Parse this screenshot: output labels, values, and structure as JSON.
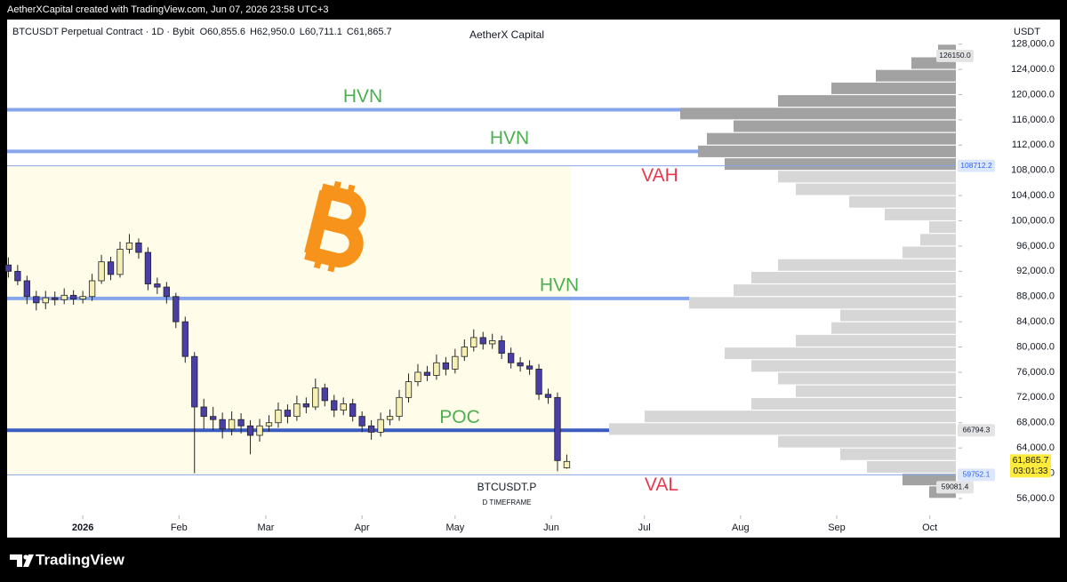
{
  "top_bar": "AetherXCapital created with TradingView.com, Jun 07, 2026 23:58 UTC+3",
  "footer": "TradingView",
  "chart_data": {
    "type": "candlestick",
    "symbol_info": "BTCUSDT Perpetual Contract · 1D · Bybit",
    "ohlc_labels": [
      "O60,855.6",
      "H62,950.0",
      "L60,711.1",
      "C61,865.7"
    ],
    "title": "AetherX Capital",
    "currency": "USDT",
    "watermark": "BTCUSDT.P",
    "watermark_sub": "D TIMEFRAME",
    "up_color": "#f6f0b4",
    "down_color": "#4a3ea8",
    "xlim": [
      -24.4,
      281.4
    ],
    "xticks": [
      {
        "value": 0,
        "label": "2026"
      },
      {
        "value": 31,
        "label": "Feb"
      },
      {
        "value": 59,
        "label": "Mar"
      },
      {
        "value": 90,
        "label": "Apr"
      },
      {
        "value": 120,
        "label": "May"
      },
      {
        "value": 151,
        "label": "Jun"
      },
      {
        "value": 181,
        "label": "Jul"
      },
      {
        "value": 212,
        "label": "Aug"
      },
      {
        "value": 243,
        "label": "Sep"
      },
      {
        "value": 273,
        "label": "Oct"
      }
    ],
    "ylim": [
      53600,
      131900
    ],
    "yticks": [
      {
        "value": 56000,
        "label": "56,000.0"
      },
      {
        "value": 60000,
        "label": "60,000.0"
      },
      {
        "value": 64000,
        "label": "64,000.0"
      },
      {
        "value": 68000,
        "label": "68,000.0"
      },
      {
        "value": 72000,
        "label": "72,000.0"
      },
      {
        "value": 76000,
        "label": "76,000.0"
      },
      {
        "value": 80000,
        "label": "80,000.0"
      },
      {
        "value": 84000,
        "label": "84,000.0"
      },
      {
        "value": 88000,
        "label": "88,000.0"
      },
      {
        "value": 92000,
        "label": "92,000.0"
      },
      {
        "value": 96000,
        "label": "96,000.0"
      },
      {
        "value": 100000,
        "label": "100,000.0"
      },
      {
        "value": 104000,
        "label": "104,000.0"
      },
      {
        "value": 108000,
        "label": "108,000.0"
      },
      {
        "value": 112000,
        "label": "112,000.0"
      },
      {
        "value": 116000,
        "label": "116,000.0"
      },
      {
        "value": 120000,
        "label": "120,000.0"
      },
      {
        "value": 124000,
        "label": "124,000.0"
      },
      {
        "value": 128000,
        "label": "128,000.0"
      }
    ],
    "x": [
      -24,
      -21,
      -18,
      -15,
      -12,
      -9,
      -6,
      -3,
      0,
      3,
      6,
      9,
      12,
      15,
      18,
      21,
      24,
      27,
      30,
      33,
      36,
      39,
      42,
      45,
      48,
      51,
      54,
      57,
      60,
      63,
      66,
      69,
      72,
      75,
      78,
      81,
      84,
      87,
      90,
      93,
      96,
      99,
      102,
      105,
      108,
      111,
      114,
      117,
      120,
      123,
      126,
      129,
      132,
      135,
      138,
      141,
      144,
      147,
      150,
      153,
      156
    ],
    "ohlc": [
      [
        93000,
        94200,
        91000,
        92000
      ],
      [
        92000,
        93000,
        89800,
        90500
      ],
      [
        90500,
        91300,
        86800,
        88000
      ],
      [
        88000,
        88900,
        85800,
        87000
      ],
      [
        87000,
        88900,
        86000,
        87800
      ],
      [
        87800,
        88800,
        86600,
        87500
      ],
      [
        87500,
        89300,
        86800,
        88200
      ],
      [
        88200,
        89000,
        86700,
        87600
      ],
      [
        87600,
        88900,
        86900,
        88000
      ],
      [
        88000,
        91600,
        87300,
        90500
      ],
      [
        90500,
        94600,
        90000,
        93500
      ],
      [
        93500,
        94300,
        90600,
        91500
      ],
      [
        91500,
        96700,
        91000,
        95500
      ],
      [
        95500,
        97900,
        94800,
        96500
      ],
      [
        96500,
        97200,
        94000,
        95000
      ],
      [
        95000,
        95800,
        89000,
        90000
      ],
      [
        90000,
        91000,
        88400,
        89500
      ],
      [
        89500,
        90300,
        86900,
        88000
      ],
      [
        88000,
        88600,
        83000,
        84000
      ],
      [
        84000,
        84800,
        77500,
        78500
      ],
      [
        78500,
        79200,
        60000,
        70500
      ],
      [
        70500,
        71800,
        67000,
        69000
      ],
      [
        69000,
        70500,
        66800,
        68500
      ],
      [
        68500,
        69600,
        65500,
        67000
      ],
      [
        67000,
        69800,
        66000,
        68500
      ],
      [
        68500,
        69500,
        66300,
        67500
      ],
      [
        67500,
        68400,
        63000,
        66000
      ],
      [
        66000,
        68600,
        65000,
        67500
      ],
      [
        67500,
        69200,
        66600,
        68000
      ],
      [
        68000,
        71200,
        67200,
        70000
      ],
      [
        70000,
        70900,
        67900,
        69000
      ],
      [
        69000,
        72300,
        68300,
        71000
      ],
      [
        71000,
        72000,
        69500,
        70500
      ],
      [
        70500,
        75000,
        70000,
        73500
      ],
      [
        73500,
        74200,
        70600,
        71500
      ],
      [
        71500,
        72400,
        68900,
        70000
      ],
      [
        70000,
        72000,
        69200,
        71000
      ],
      [
        71000,
        71800,
        68200,
        69000
      ],
      [
        69000,
        69800,
        66500,
        67500
      ],
      [
        67500,
        68400,
        65300,
        66500
      ],
      [
        66500,
        69600,
        65800,
        68500
      ],
      [
        68500,
        70100,
        67600,
        69000
      ],
      [
        69000,
        73200,
        68300,
        72000
      ],
      [
        72000,
        75800,
        71200,
        74500
      ],
      [
        74500,
        77300,
        73800,
        76000
      ],
      [
        76000,
        77000,
        74600,
        75500
      ],
      [
        75500,
        78800,
        74800,
        77500
      ],
      [
        77500,
        78400,
        75500,
        76500
      ],
      [
        76500,
        79700,
        75800,
        78500
      ],
      [
        78500,
        81200,
        77800,
        80000
      ],
      [
        80000,
        82800,
        79300,
        81500
      ],
      [
        81500,
        82400,
        79600,
        80500
      ],
      [
        80500,
        82100,
        79700,
        81000
      ],
      [
        81000,
        81800,
        78100,
        79000
      ],
      [
        79000,
        79900,
        76600,
        77500
      ],
      [
        77500,
        78400,
        76100,
        77000
      ],
      [
        77000,
        77900,
        75600,
        76500
      ],
      [
        76500,
        77300,
        71600,
        72500
      ],
      [
        72500,
        73400,
        71000,
        72000
      ],
      [
        72000,
        72800,
        60300,
        62000
      ],
      [
        60855.6,
        62950.0,
        60711.1,
        61865.7
      ]
    ],
    "volume_profile": {
      "bins": [
        56000,
        58000,
        60000,
        62000,
        64000,
        66000,
        68000,
        70000,
        72000,
        74000,
        76000,
        78000,
        80000,
        82000,
        84000,
        86000,
        88000,
        90000,
        92000,
        94000,
        96000,
        98000,
        100000,
        102000,
        104000,
        106000,
        108000,
        110000,
        112000,
        114000,
        116000,
        118000,
        120000,
        122000,
        124000,
        126000,
        128000
      ],
      "values": [
        30,
        60,
        100,
        130,
        200,
        390,
        350,
        230,
        180,
        200,
        230,
        260,
        180,
        140,
        130,
        300,
        250,
        230,
        200,
        60,
        40,
        30,
        80,
        120,
        180,
        200,
        260,
        290,
        280,
        250,
        310,
        200,
        140,
        90,
        50,
        20
      ],
      "value_area_color": "#d6d6d6",
      "outside_color": "#a2a2a2"
    },
    "value_area_fill": "#fffdea",
    "levels": [
      {
        "label": "HVN",
        "value": 117600,
        "color": "#86a5ea",
        "label_color": "#4caf50"
      },
      {
        "label": "HVN",
        "value": 111000,
        "color": "#86a5ea",
        "label_color": "#4caf50"
      },
      {
        "label": "VAH",
        "value": 108712.2,
        "color": "#86a5ea",
        "label_color": "#e8384f"
      },
      {
        "label": "HVN",
        "value": 87700,
        "color": "#86a5ea",
        "label_color": "#4caf50"
      },
      {
        "label": "POC",
        "value": 66794.3,
        "color": "#3a5cc0",
        "label_color": "#4caf50"
      },
      {
        "label": "VAL",
        "value": 59752.1,
        "color": "#86a5ea",
        "label_color": "#e8384f"
      }
    ],
    "profile_range": [
      {
        "value": 126150,
        "label": "126150.0"
      },
      59081.4
    ],
    "last_price": {
      "value": 61865.7,
      "label": "61,865.7"
    },
    "countdown": "03:01:33"
  }
}
